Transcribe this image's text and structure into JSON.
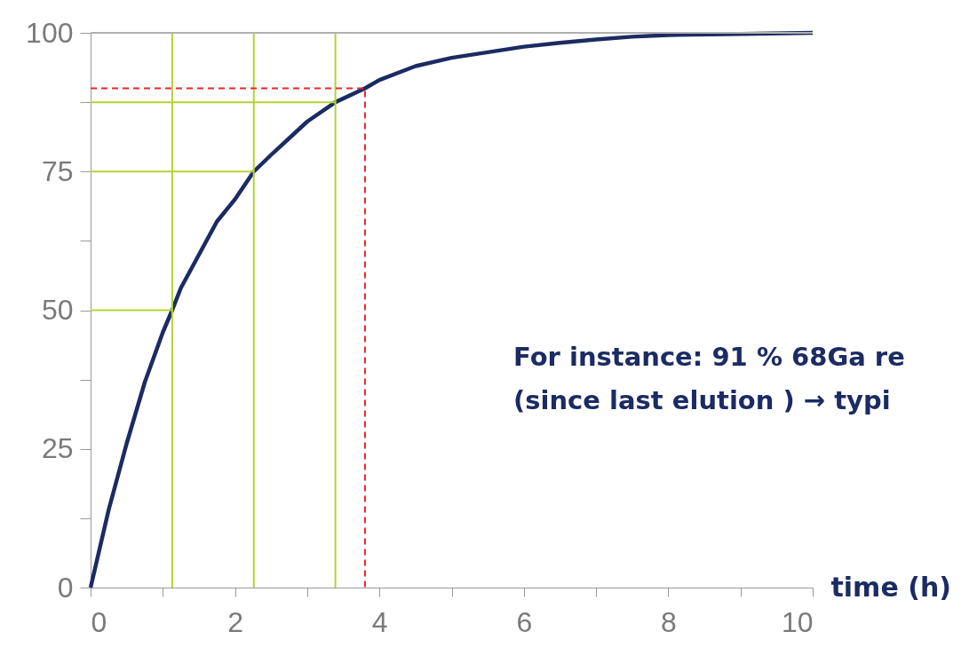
{
  "chart_data": {
    "type": "line",
    "xlabel": "time (h)",
    "annotations": [
      "For instance:  91 % 68Ga re",
      "(since last elution )  → typi"
    ],
    "xlim": [
      0,
      10
    ],
    "ylim": [
      0,
      100
    ],
    "xticks": [
      0,
      {
        "value": 1,
        "label": null
      },
      2,
      {
        "value": 3,
        "label": null
      },
      4,
      {
        "value": 5,
        "label": null
      },
      6,
      {
        "value": 7,
        "label": null
      },
      8,
      {
        "value": 9,
        "label": null
      },
      10
    ],
    "yticks": [
      0,
      {
        "value": 12.5,
        "label": null
      },
      25,
      {
        "value": 37.5,
        "label": null
      },
      50,
      {
        "value": 62.5,
        "label": null
      },
      75,
      {
        "value": 87.5,
        "label": null
      },
      100
    ],
    "grid": false,
    "marker": "none",
    "ref_lines": [
      {
        "axis": "y",
        "value": 100,
        "color": "#b0b0b0"
      },
      {
        "axis": "x",
        "value": 1.13,
        "color": "#b5d334"
      },
      {
        "axis": "x",
        "value": 2.26,
        "color": "#b5d334"
      },
      {
        "axis": "x",
        "value": 3.39,
        "color": "#b5d334"
      }
    ],
    "series": [
      {
        "color": "#1b2b63",
        "line_style": "solid",
        "x": [
          0,
          0.25,
          0.5,
          0.75,
          1,
          1.13,
          1.25,
          1.5,
          1.75,
          2,
          2.26,
          2.5,
          2.75,
          3,
          3.39,
          3.8,
          4,
          4.5,
          5,
          5.5,
          6,
          6.5,
          7,
          7.5,
          8,
          9,
          10
        ],
        "values": [
          0,
          14,
          26,
          37,
          46,
          50,
          54,
          60,
          66,
          70,
          75,
          78,
          81,
          84,
          87.5,
          90,
          91.5,
          94,
          95.5,
          96.5,
          97.5,
          98.2,
          98.8,
          99.3,
          99.6,
          99.8,
          100
        ]
      },
      {
        "color": "#b5d334",
        "line_style": "solid",
        "x": [
          0,
          1.13
        ],
        "values": [
          50,
          50
        ]
      },
      {
        "color": "#b5d334",
        "line_style": "solid",
        "x": [
          0,
          2.26
        ],
        "values": [
          75,
          75
        ]
      },
      {
        "color": "#b5d334",
        "line_style": "solid",
        "x": [
          0,
          3.39
        ],
        "values": [
          87.5,
          87.5
        ]
      },
      {
        "color": "#e8272a",
        "line_style": "dashed",
        "x": [
          0,
          3.8,
          3.8
        ],
        "values": [
          90,
          90,
          0
        ]
      }
    ]
  }
}
